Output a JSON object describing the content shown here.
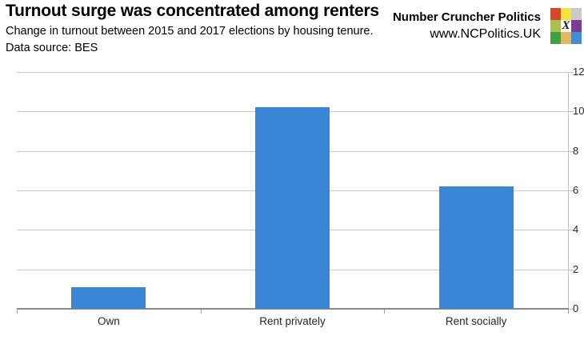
{
  "header": {
    "title": "Turnout surge was concentrated among renters",
    "subtitle_line1": "Change in turnout between 2015 and 2017 elections by housing tenure.",
    "subtitle_line2": "Data source: BES"
  },
  "brand": {
    "name": "Number Cruncher Politics",
    "url": "www.NCPolitics.UK",
    "logo_letter": "X",
    "logo_colors": [
      [
        "#d4492a",
        "#f0e73e",
        "#c9c9c9"
      ],
      [
        "#a9bf4f",
        "#ffffff",
        "#7b3d92"
      ],
      [
        "#429e41",
        "#e6b65c",
        "#418fd2"
      ]
    ]
  },
  "chart_data": {
    "type": "bar",
    "categories": [
      "Own",
      "Rent privately",
      "Rent socially"
    ],
    "values": [
      1.1,
      10.2,
      6.2
    ],
    "title": "Turnout surge was concentrated among renters",
    "xlabel": "",
    "ylabel": "",
    "ylim": [
      0,
      12
    ],
    "yticks": [
      0,
      2,
      4,
      6,
      8,
      10,
      12
    ],
    "y_axis_side": "right",
    "grid": true,
    "legend": false,
    "bar_color": "#3a86d5",
    "gridline_color": "#c9c9c9",
    "axis_color": "#8a8a8a"
  }
}
